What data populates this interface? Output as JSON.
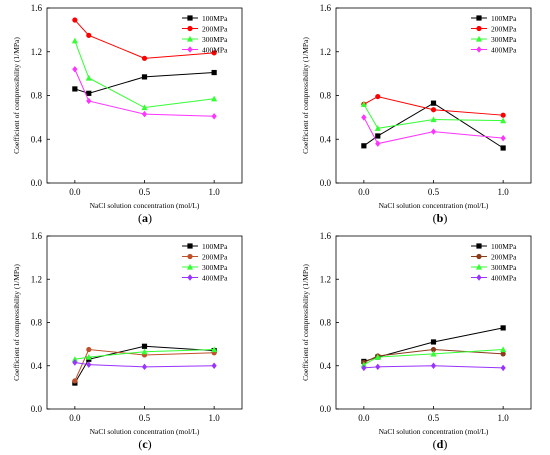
{
  "chart_data": [
    {
      "type": "line",
      "panel_label": "(a)",
      "xlabel": "NaCl solution concentration (mol/L)",
      "ylabel": "Coefficient of compressibility (1/MPa)",
      "xlim": [
        -0.2,
        1.2
      ],
      "ylim": [
        0,
        1.6
      ],
      "xticks": [
        "0.0",
        "0.5",
        "1.0"
      ],
      "yticks": [
        "0.0",
        "0.4",
        "0.8",
        "1.2",
        "1.6"
      ],
      "legend_position": "top-right",
      "x": [
        0,
        0.1,
        0.5,
        1.0
      ],
      "series": [
        {
          "name": "100MPa",
          "color": "#000000",
          "marker": "square",
          "values": [
            0.86,
            0.82,
            0.97,
            1.01
          ]
        },
        {
          "name": "200MPa",
          "color": "#ff0000",
          "marker": "circle",
          "values": [
            1.49,
            1.35,
            1.14,
            1.19
          ]
        },
        {
          "name": "300MPa",
          "color": "#33ff33",
          "marker": "triangle",
          "values": [
            1.3,
            0.96,
            0.69,
            0.77
          ]
        },
        {
          "name": "400MPa",
          "color": "#ff33ff",
          "marker": "diamond",
          "values": [
            1.04,
            0.75,
            0.63,
            0.61
          ]
        }
      ]
    },
    {
      "type": "line",
      "panel_label": "(b)",
      "xlabel": "NaCl solution concentration (mol/L)",
      "ylabel": "Coefficient of compressibility (1/MPa)",
      "xlim": [
        -0.2,
        1.2
      ],
      "ylim": [
        0,
        1.6
      ],
      "xticks": [
        "0.0",
        "0.5",
        "1.0"
      ],
      "yticks": [
        "0.0",
        "0.4",
        "0.8",
        "1.2",
        "1.6"
      ],
      "legend_position": "top-right",
      "x": [
        0,
        0.1,
        0.5,
        1.0
      ],
      "series": [
        {
          "name": "100MPa",
          "color": "#000000",
          "marker": "square",
          "values": [
            0.34,
            0.43,
            0.73,
            0.32
          ]
        },
        {
          "name": "200MPa",
          "color": "#ff0000",
          "marker": "circle",
          "values": [
            0.72,
            0.79,
            0.67,
            0.62
          ]
        },
        {
          "name": "300MPa",
          "color": "#33ff33",
          "marker": "triangle",
          "values": [
            0.72,
            0.5,
            0.58,
            0.57
          ]
        },
        {
          "name": "400MPa",
          "color": "#ff33ff",
          "marker": "diamond",
          "values": [
            0.6,
            0.36,
            0.47,
            0.41
          ]
        }
      ]
    },
    {
      "type": "line",
      "panel_label": "(c)",
      "xlabel": "NaCl solution concentration (mol/L)",
      "ylabel": "Coefficient of compressibility (1/MPa)",
      "xlim": [
        -0.2,
        1.2
      ],
      "ylim": [
        0,
        1.6
      ],
      "xticks": [
        "0.0",
        "0.5",
        "1.0"
      ],
      "yticks": [
        "0.0",
        "0.4",
        "0.8",
        "1.2",
        "1.6"
      ],
      "legend_position": "top-right",
      "x": [
        0,
        0.1,
        0.5,
        1.0
      ],
      "series": [
        {
          "name": "100MPa",
          "color": "#000000",
          "marker": "square",
          "values": [
            0.24,
            0.46,
            0.58,
            0.54
          ]
        },
        {
          "name": "200MPa",
          "color": "#c0502a",
          "marker": "circle",
          "values": [
            0.26,
            0.55,
            0.5,
            0.52
          ]
        },
        {
          "name": "300MPa",
          "color": "#33ff33",
          "marker": "triangle",
          "values": [
            0.46,
            0.48,
            0.53,
            0.55
          ]
        },
        {
          "name": "400MPa",
          "color": "#9933ff",
          "marker": "diamond",
          "values": [
            0.43,
            0.41,
            0.39,
            0.4
          ]
        }
      ]
    },
    {
      "type": "line",
      "panel_label": "(d)",
      "xlabel": "NaCl solution concentration (mol/L)",
      "ylabel": "Coefficient of compressibility (1/MPa)",
      "xlim": [
        -0.2,
        1.2
      ],
      "ylim": [
        0,
        1.6
      ],
      "xticks": [
        "0.0",
        "0.5",
        "1.0"
      ],
      "yticks": [
        "0.0",
        "0.4",
        "0.8",
        "1.2",
        "1.6"
      ],
      "legend_position": "top-right",
      "x": [
        0,
        0.1,
        0.5,
        1.0
      ],
      "series": [
        {
          "name": "100MPa",
          "color": "#000000",
          "marker": "square",
          "values": [
            0.44,
            0.48,
            0.62,
            0.75
          ]
        },
        {
          "name": "200MPa",
          "color": "#8b3a1a",
          "marker": "circle",
          "values": [
            0.43,
            0.49,
            0.55,
            0.51
          ]
        },
        {
          "name": "300MPa",
          "color": "#33ff33",
          "marker": "triangle",
          "values": [
            0.41,
            0.48,
            0.51,
            0.55
          ]
        },
        {
          "name": "400MPa",
          "color": "#9933ff",
          "marker": "diamond",
          "values": [
            0.38,
            0.39,
            0.4,
            0.38
          ]
        }
      ]
    }
  ]
}
